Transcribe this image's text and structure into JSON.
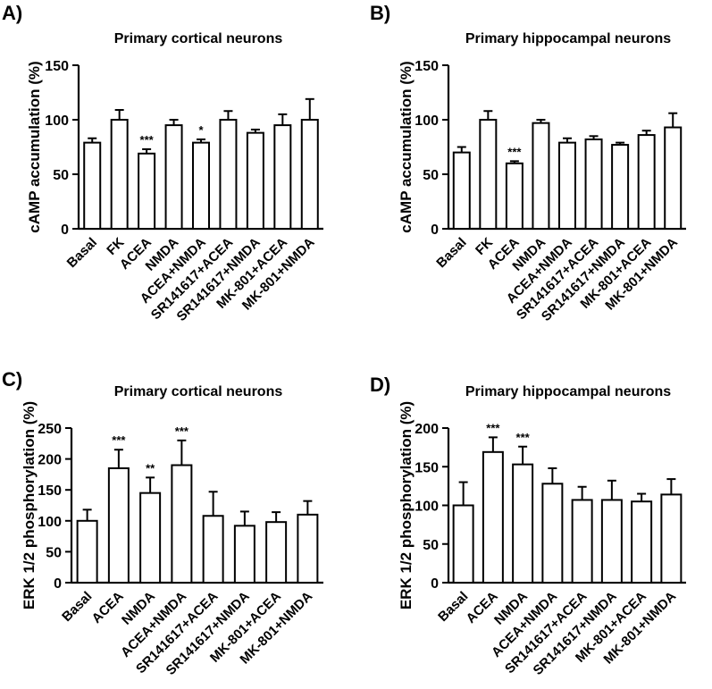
{
  "chart_data": [
    {
      "panel_label": "A)",
      "type": "bar",
      "title": "Primary cortical neurons",
      "ylabel": "cAMP accumulation (%)",
      "ylim": [
        0,
        150
      ],
      "yticks": [
        "0",
        "50",
        "100",
        "150"
      ],
      "categories": [
        "Basal",
        "FK",
        "ACEA",
        "NMDA",
        "ACEA+NMDA",
        "SR141617+ACEA",
        "SR141617+NMDA",
        "MK-801+ACEA",
        "MK-801+NMDA"
      ],
      "values": [
        79,
        100,
        69,
        95,
        79,
        100,
        88,
        95,
        100
      ],
      "errors": [
        4,
        9,
        4,
        5,
        3,
        8,
        3,
        10,
        19
      ],
      "annotations": [
        "",
        "",
        "***",
        "",
        "*",
        "",
        "",
        "",
        ""
      ]
    },
    {
      "panel_label": "B)",
      "type": "bar",
      "title": "Primary hippocampal neurons",
      "ylabel": "cAMP accumulation (%)",
      "ylim": [
        0,
        150
      ],
      "yticks": [
        "0",
        "50",
        "100",
        "150"
      ],
      "categories": [
        "Basal",
        "FK",
        "ACEA",
        "NMDA",
        "ACEA+NMDA",
        "SR141617+ACEA",
        "SR141617+NMDA",
        "MK-801+ACEA",
        "MK-801+NMDA"
      ],
      "values": [
        70,
        100,
        60,
        97,
        79,
        82,
        77,
        86,
        93
      ],
      "errors": [
        5,
        8,
        2,
        3,
        4,
        3,
        2,
        4,
        13
      ],
      "annotations": [
        "",
        "",
        "***",
        "",
        "",
        "",
        "",
        "",
        ""
      ]
    },
    {
      "panel_label": "C)",
      "type": "bar",
      "title": "Primary cortical neurons",
      "ylabel": "ERK 1/2 phosphorylation (%)",
      "ylim": [
        0,
        250
      ],
      "yticks": [
        "0",
        "50",
        "100",
        "150",
        "200",
        "250"
      ],
      "categories": [
        "Basal",
        "ACEA",
        "NMDA",
        "ACEA+NMDA",
        "SR141617+ACEA",
        "SR141617+NMDA",
        "MK-801+ACEA",
        "MK-801+NMDA"
      ],
      "values": [
        100,
        185,
        145,
        190,
        108,
        92,
        98,
        110
      ],
      "errors": [
        18,
        30,
        25,
        40,
        39,
        23,
        16,
        22
      ],
      "annotations": [
        "",
        "***",
        "**",
        "***",
        "",
        "",
        "",
        ""
      ]
    },
    {
      "panel_label": "D)",
      "type": "bar",
      "title": "Primary hippocampal neurons",
      "ylabel": "ERK 1/2 phosphorylation (%)",
      "ylim": [
        0,
        200
      ],
      "yticks": [
        "0",
        "50",
        "100",
        "150",
        "200"
      ],
      "categories": [
        "Basal",
        "ACEA",
        "NMDA",
        "ACEA+NMDA",
        "SR141617+ACEA",
        "SR141617+NMDA",
        "MK-801+ACEA",
        "MK-801+NMDA"
      ],
      "values": [
        100,
        169,
        153,
        128,
        107,
        107,
        105,
        114
      ],
      "errors": [
        30,
        19,
        23,
        20,
        17,
        25,
        10,
        20
      ],
      "annotations": [
        "",
        "***",
        "***",
        "",
        "",
        "",
        "",
        ""
      ]
    }
  ]
}
